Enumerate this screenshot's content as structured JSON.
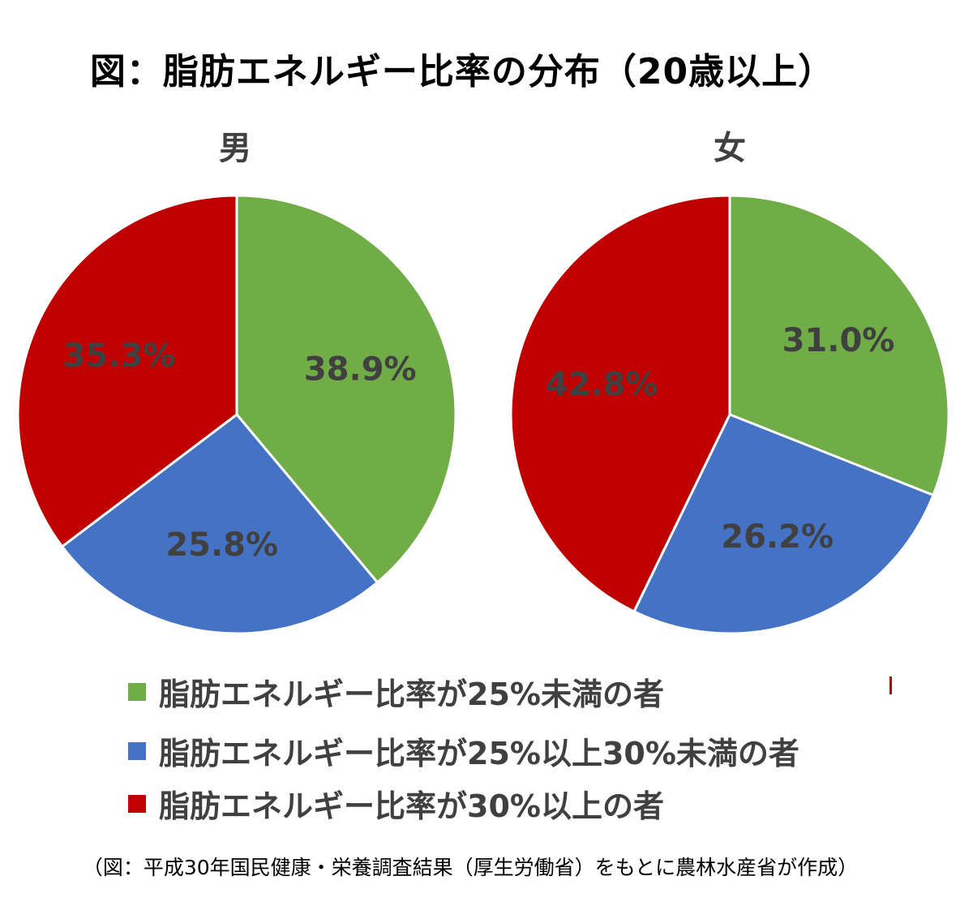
{
  "title": "図：脂肪エネルギー比率の分布（20歳以上）",
  "legend": [
    {
      "label": "脂肪エネルギー比率が25%未満の者",
      "color": "#70ad47"
    },
    {
      "label": "脂肪エネルギー比率が25%以上30%未満の者",
      "color": "#4472c4"
    },
    {
      "label": "脂肪エネルギー比率が30%以上の者",
      "color": "#c00000"
    }
  ],
  "source": "（図：平成30年国民健康・栄養調査結果（厚生労働省）をもとに農林水産省が作成）",
  "chart_data": [
    {
      "type": "pie",
      "title": "男",
      "categories": [
        "脂肪エネルギー比率が25%未満の者",
        "脂肪エネルギー比率が25%以上30%未満の者",
        "脂肪エネルギー比率が30%以上の者"
      ],
      "values": [
        38.9,
        25.8,
        35.3
      ],
      "data_labels": [
        "38.9%",
        "25.8%",
        "35.3%"
      ],
      "colors": [
        "#70ad47",
        "#4472c4",
        "#c00000"
      ],
      "start": "12 o'clock, clockwise"
    },
    {
      "type": "pie",
      "title": "女",
      "categories": [
        "脂肪エネルギー比率が25%未満の者",
        "脂肪エネルギー比率が25%以上30%未満の者",
        "脂肪エネルギー比率が30%以上の者"
      ],
      "values": [
        31.0,
        26.2,
        42.8
      ],
      "data_labels": [
        "31.0%",
        "26.2%",
        "42.8%"
      ],
      "colors": [
        "#70ad47",
        "#4472c4",
        "#c00000"
      ],
      "start": "12 o'clock, clockwise"
    }
  ]
}
